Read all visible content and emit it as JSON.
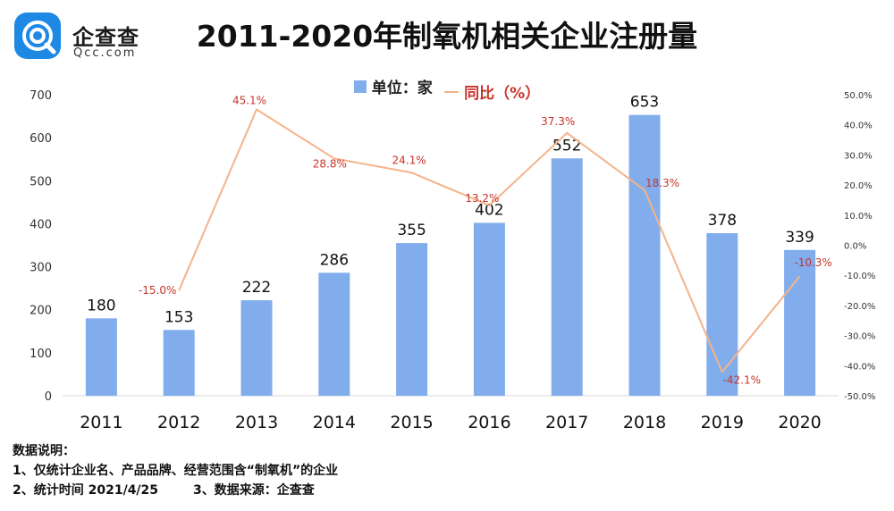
{
  "brand": {
    "name": "企查查",
    "sub": "Qcc.com"
  },
  "title": "2011-2020年制氧机相关企业注册量",
  "legend": {
    "bar": "单位：家",
    "line": "同比（%）"
  },
  "colors": {
    "bar": "#82ADEC",
    "line": "#F3B38A",
    "line_label": "#C8342A"
  },
  "chart_data": {
    "type": "bar",
    "title": "2011-2020年制氧机相关企业注册量",
    "categories": [
      "2011",
      "2012",
      "2013",
      "2014",
      "2015",
      "2016",
      "2017",
      "2018",
      "2019",
      "2020"
    ],
    "series": [
      {
        "name": "单位：家",
        "type": "bar",
        "axis": "left",
        "values": [
          180,
          153,
          222,
          286,
          355,
          402,
          552,
          653,
          378,
          339
        ]
      },
      {
        "name": "同比（%）",
        "type": "line",
        "axis": "right",
        "values": [
          null,
          -15.0,
          45.1,
          28.8,
          24.1,
          13.2,
          37.3,
          18.3,
          -42.1,
          -10.3
        ],
        "labels": [
          "",
          "-15.0%",
          "45.1%",
          "28.8%",
          "24.1%",
          "13.2%",
          "37.3%",
          "18.3%",
          "-42.1%",
          "-10.3%"
        ]
      }
    ],
    "left_axis": {
      "min": 0,
      "max": 700,
      "ticks": [
        "0",
        "100",
        "200",
        "300",
        "400",
        "500",
        "600",
        "700"
      ]
    },
    "right_axis": {
      "min": -50,
      "max": 50,
      "ticks": [
        "-50.0%",
        "-40.0%",
        "-30.0%",
        "-20.0%",
        "-10.0%",
        "0.0%",
        "10.0%",
        "20.0%",
        "30.0%",
        "40.0%",
        "50.0%"
      ]
    },
    "grid": false,
    "legend_position": "top-center"
  },
  "notes": {
    "heading": "数据说明：",
    "line1": "1、仅统计企业名、产品品牌、经营范围含“制氧机”的企业",
    "line2": "2、统计时间 2021/4/25        3、数据来源：企查查"
  }
}
